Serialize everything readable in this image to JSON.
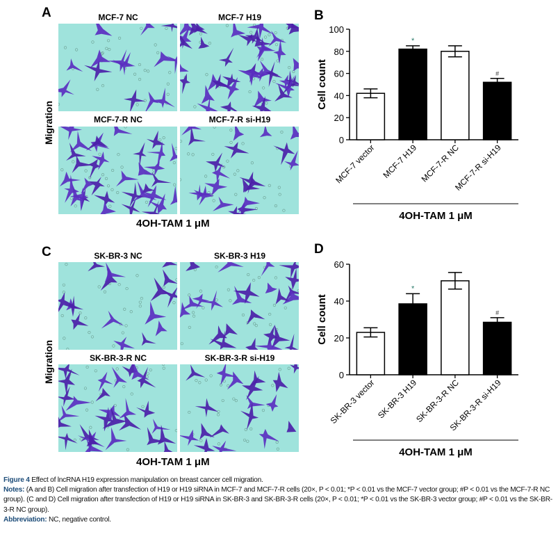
{
  "panels": {
    "A": {
      "letter": "A",
      "images": [
        "MCF-7 NC",
        "MCF-7 H19",
        "MCF-7-R NC",
        "MCF-7-R si-H19"
      ],
      "ylabel": "Migration",
      "xlabel": "4OH-TAM 1 μM"
    },
    "C": {
      "letter": "C",
      "images": [
        "SK-BR-3 NC",
        "SK-BR-3 H19",
        "SK-BR-3-R NC",
        "SK-BR-3-R si-H19"
      ],
      "ylabel": "Migration",
      "xlabel": "4OH-TAM 1 μM"
    }
  },
  "chart_data": [
    {
      "panel": "B",
      "type": "bar",
      "ylabel": "Cell count",
      "xlabel": "4OH-TAM 1 μM",
      "ylim": [
        0,
        100
      ],
      "yticks": [
        0,
        20,
        40,
        60,
        80,
        100
      ],
      "categories": [
        "MCF-7 vector",
        "MCF-7 H19",
        "MCF-7-R NC",
        "MCF-7-R si-H19"
      ],
      "values": [
        42,
        82,
        80,
        52
      ],
      "errors": [
        4,
        3,
        5,
        3.5
      ],
      "fills": [
        "white",
        "black",
        "white",
        "black"
      ],
      "annotations": [
        "",
        "*",
        "",
        "#"
      ]
    },
    {
      "panel": "D",
      "type": "bar",
      "ylabel": "Cell count",
      "xlabel": "4OH-TAM 1 μM",
      "ylim": [
        0,
        60
      ],
      "yticks": [
        0,
        20,
        40,
        60
      ],
      "categories": [
        "SK-BR-3 vector",
        "SK-BR-3 H19",
        "SK-BR-3-R NC",
        "SK-BR-3-R si-H19"
      ],
      "values": [
        23,
        38.5,
        51,
        28.5
      ],
      "errors": [
        2.5,
        5.5,
        4.5,
        2.5
      ],
      "fills": [
        "white",
        "black",
        "white",
        "black"
      ],
      "annotations": [
        "",
        "*",
        "",
        "#"
      ]
    }
  ],
  "caption": {
    "title_label": "Figure 4",
    "title": " Effect of lncRNA H19 expression manipulation on breast cancer cell migration.",
    "notes_label": "Notes:",
    "notes": " (A and B) Cell migration after transfection of H19 or H19 siRNA in MCF-7 and MCF-7-R cells (20×, P < 0.01; *P < 0.01 vs the MCF-7 vector group; #P < 0.01 vs the MCF-7-R NC group). (C and D) Cell migration after transfection of H19 or H19 siRNA in SK-BR-3 and SK-BR-3-R cells (20×, P < 0.01; *P < 0.01 vs the SK-BR-3 vector group; #P < 0.01 vs the SK-BR-3-R NC group).",
    "abbrev_label": "Abbreviation:",
    "abbrev": " NC, negative control."
  },
  "colors": {
    "micrograph_bg": "#9fe3dc",
    "cell_stain": "#4b1fa8",
    "caption_label": "#1f4e7a"
  }
}
